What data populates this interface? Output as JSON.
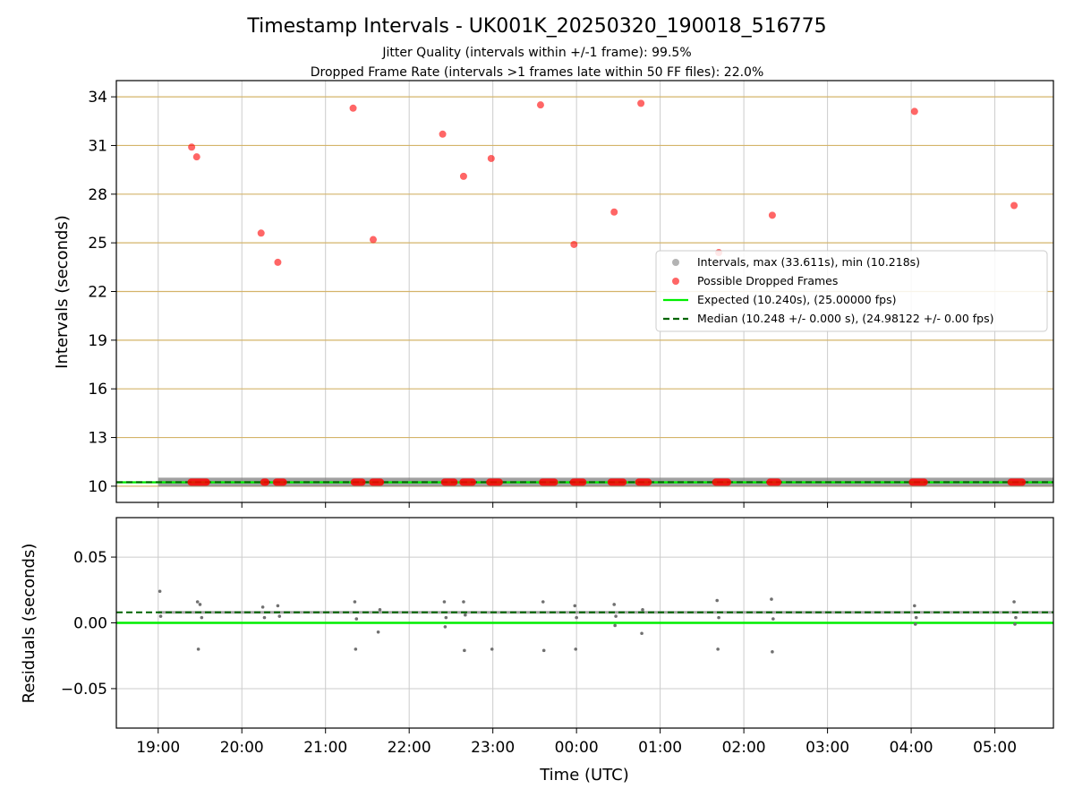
{
  "title": "Timestamp Intervals - UK001K_20250320_190018_516775",
  "subtitle_lines": [
    "Jitter Quality (intervals within +/-1 frame): 99.5%",
    "Dropped Frame Rate (intervals >1 frames late within 50 FF files): 22.0%"
  ],
  "colors": {
    "intervals": "#808080",
    "dropped": "#ff0000",
    "expected": "#00ee00",
    "median": "#006400",
    "grid_top": "#d4b46a",
    "grid": "#cccccc"
  },
  "chart_data": [
    {
      "type": "scatter",
      "ylabel": "Intervals (seconds)",
      "xlim": [
        18.5,
        29.7
      ],
      "ylim": [
        9.0,
        35.0
      ],
      "y_ticks": [
        10,
        13,
        16,
        19,
        22,
        25,
        28,
        31,
        34
      ],
      "grid": true,
      "legend_position": "center-right",
      "legend": [
        "Intervals, max (33.611s), min (10.218s)",
        "Possible Dropped Frames",
        "Expected (10.240s), (25.00000 fps)",
        "Median (10.248 +/- 0.000 s), (24.98122 +/- 0.00 fps)"
      ],
      "series": [
        {
          "name": "Intervals, max (33.611s), min (10.218s)",
          "x_range": [
            19.0,
            29.7
          ],
          "y": 10.248
        },
        {
          "name": "Possible Dropped Frames",
          "x": [
            19.4,
            19.46,
            20.23,
            20.43,
            21.33,
            21.57,
            22.4,
            22.65,
            22.98,
            23.57,
            23.97,
            24.45,
            24.77,
            25.7,
            26.34,
            28.04,
            29.23
          ],
          "y": [
            30.9,
            30.3,
            25.6,
            23.8,
            33.3,
            25.2,
            31.7,
            29.1,
            30.2,
            33.5,
            24.9,
            26.9,
            33.6,
            24.4,
            26.7,
            33.1,
            27.3
          ],
          "baseline_clusters": [
            [
              19.35,
              19.62
            ],
            [
              20.22,
              20.33
            ],
            [
              20.37,
              20.54
            ],
            [
              21.3,
              21.48
            ],
            [
              21.52,
              21.7
            ],
            [
              22.38,
              22.58
            ],
            [
              22.6,
              22.8
            ],
            [
              22.92,
              23.12
            ],
            [
              23.55,
              23.78
            ],
            [
              23.92,
              24.12
            ],
            [
              24.37,
              24.6
            ],
            [
              24.7,
              24.9
            ],
            [
              25.62,
              25.85
            ],
            [
              26.27,
              26.45
            ],
            [
              27.97,
              28.2
            ],
            [
              29.15,
              29.37
            ]
          ]
        },
        {
          "name": "Expected (10.240s), (25.00000 fps)",
          "y": 10.24
        },
        {
          "name": "Median (10.248 +/- 0.000 s), (24.98122 +/- 0.00 fps)",
          "y": 10.248
        }
      ]
    },
    {
      "type": "scatter",
      "xlabel": "Time (UTC)",
      "ylabel": "Residuals (seconds)",
      "xlim": [
        18.5,
        29.7
      ],
      "ylim": [
        -0.08,
        0.08
      ],
      "y_ticks": [
        0.05,
        0.0,
        -0.05
      ],
      "y_tick_labels": [
        "0.05",
        "0.00",
        "−0.05"
      ],
      "x_ticks": [
        19,
        20,
        21,
        22,
        23,
        24,
        25,
        26,
        27,
        28,
        29
      ],
      "x_tick_labels": [
        "19:00",
        "20:00",
        "21:00",
        "22:00",
        "23:00",
        "00:00",
        "01:00",
        "02:00",
        "03:00",
        "04:00",
        "05:00"
      ],
      "grid": true,
      "series": [
        {
          "name": "expected",
          "y": 0.0
        },
        {
          "name": "median",
          "y": 0.008
        },
        {
          "name": "residuals",
          "x": [
            19.02,
            19.03,
            19.47,
            19.48,
            19.5,
            19.52,
            20.25,
            20.27,
            20.43,
            20.45,
            21.35,
            21.36,
            21.37,
            21.63,
            21.65,
            22.42,
            22.43,
            22.44,
            22.65,
            22.66,
            22.67,
            22.99,
            23.6,
            23.61,
            23.98,
            23.99,
            24.0,
            24.45,
            24.46,
            24.47,
            24.78,
            24.79,
            25.68,
            25.69,
            25.7,
            26.33,
            26.34,
            26.35,
            28.04,
            28.05,
            28.06,
            29.23,
            29.24,
            29.25
          ],
          "y": [
            0.024,
            0.005,
            0.016,
            -0.02,
            0.014,
            0.004,
            0.012,
            0.004,
            0.013,
            0.005,
            0.016,
            -0.02,
            0.003,
            -0.007,
            0.01,
            0.016,
            -0.003,
            0.004,
            0.016,
            -0.021,
            0.006,
            -0.02,
            0.016,
            -0.021,
            0.013,
            -0.02,
            0.004,
            0.014,
            -0.002,
            0.005,
            -0.008,
            0.01,
            0.017,
            -0.02,
            0.004,
            0.018,
            -0.022,
            0.003,
            0.013,
            -0.001,
            0.004,
            0.016,
            -0.001,
            0.004
          ]
        }
      ]
    }
  ]
}
